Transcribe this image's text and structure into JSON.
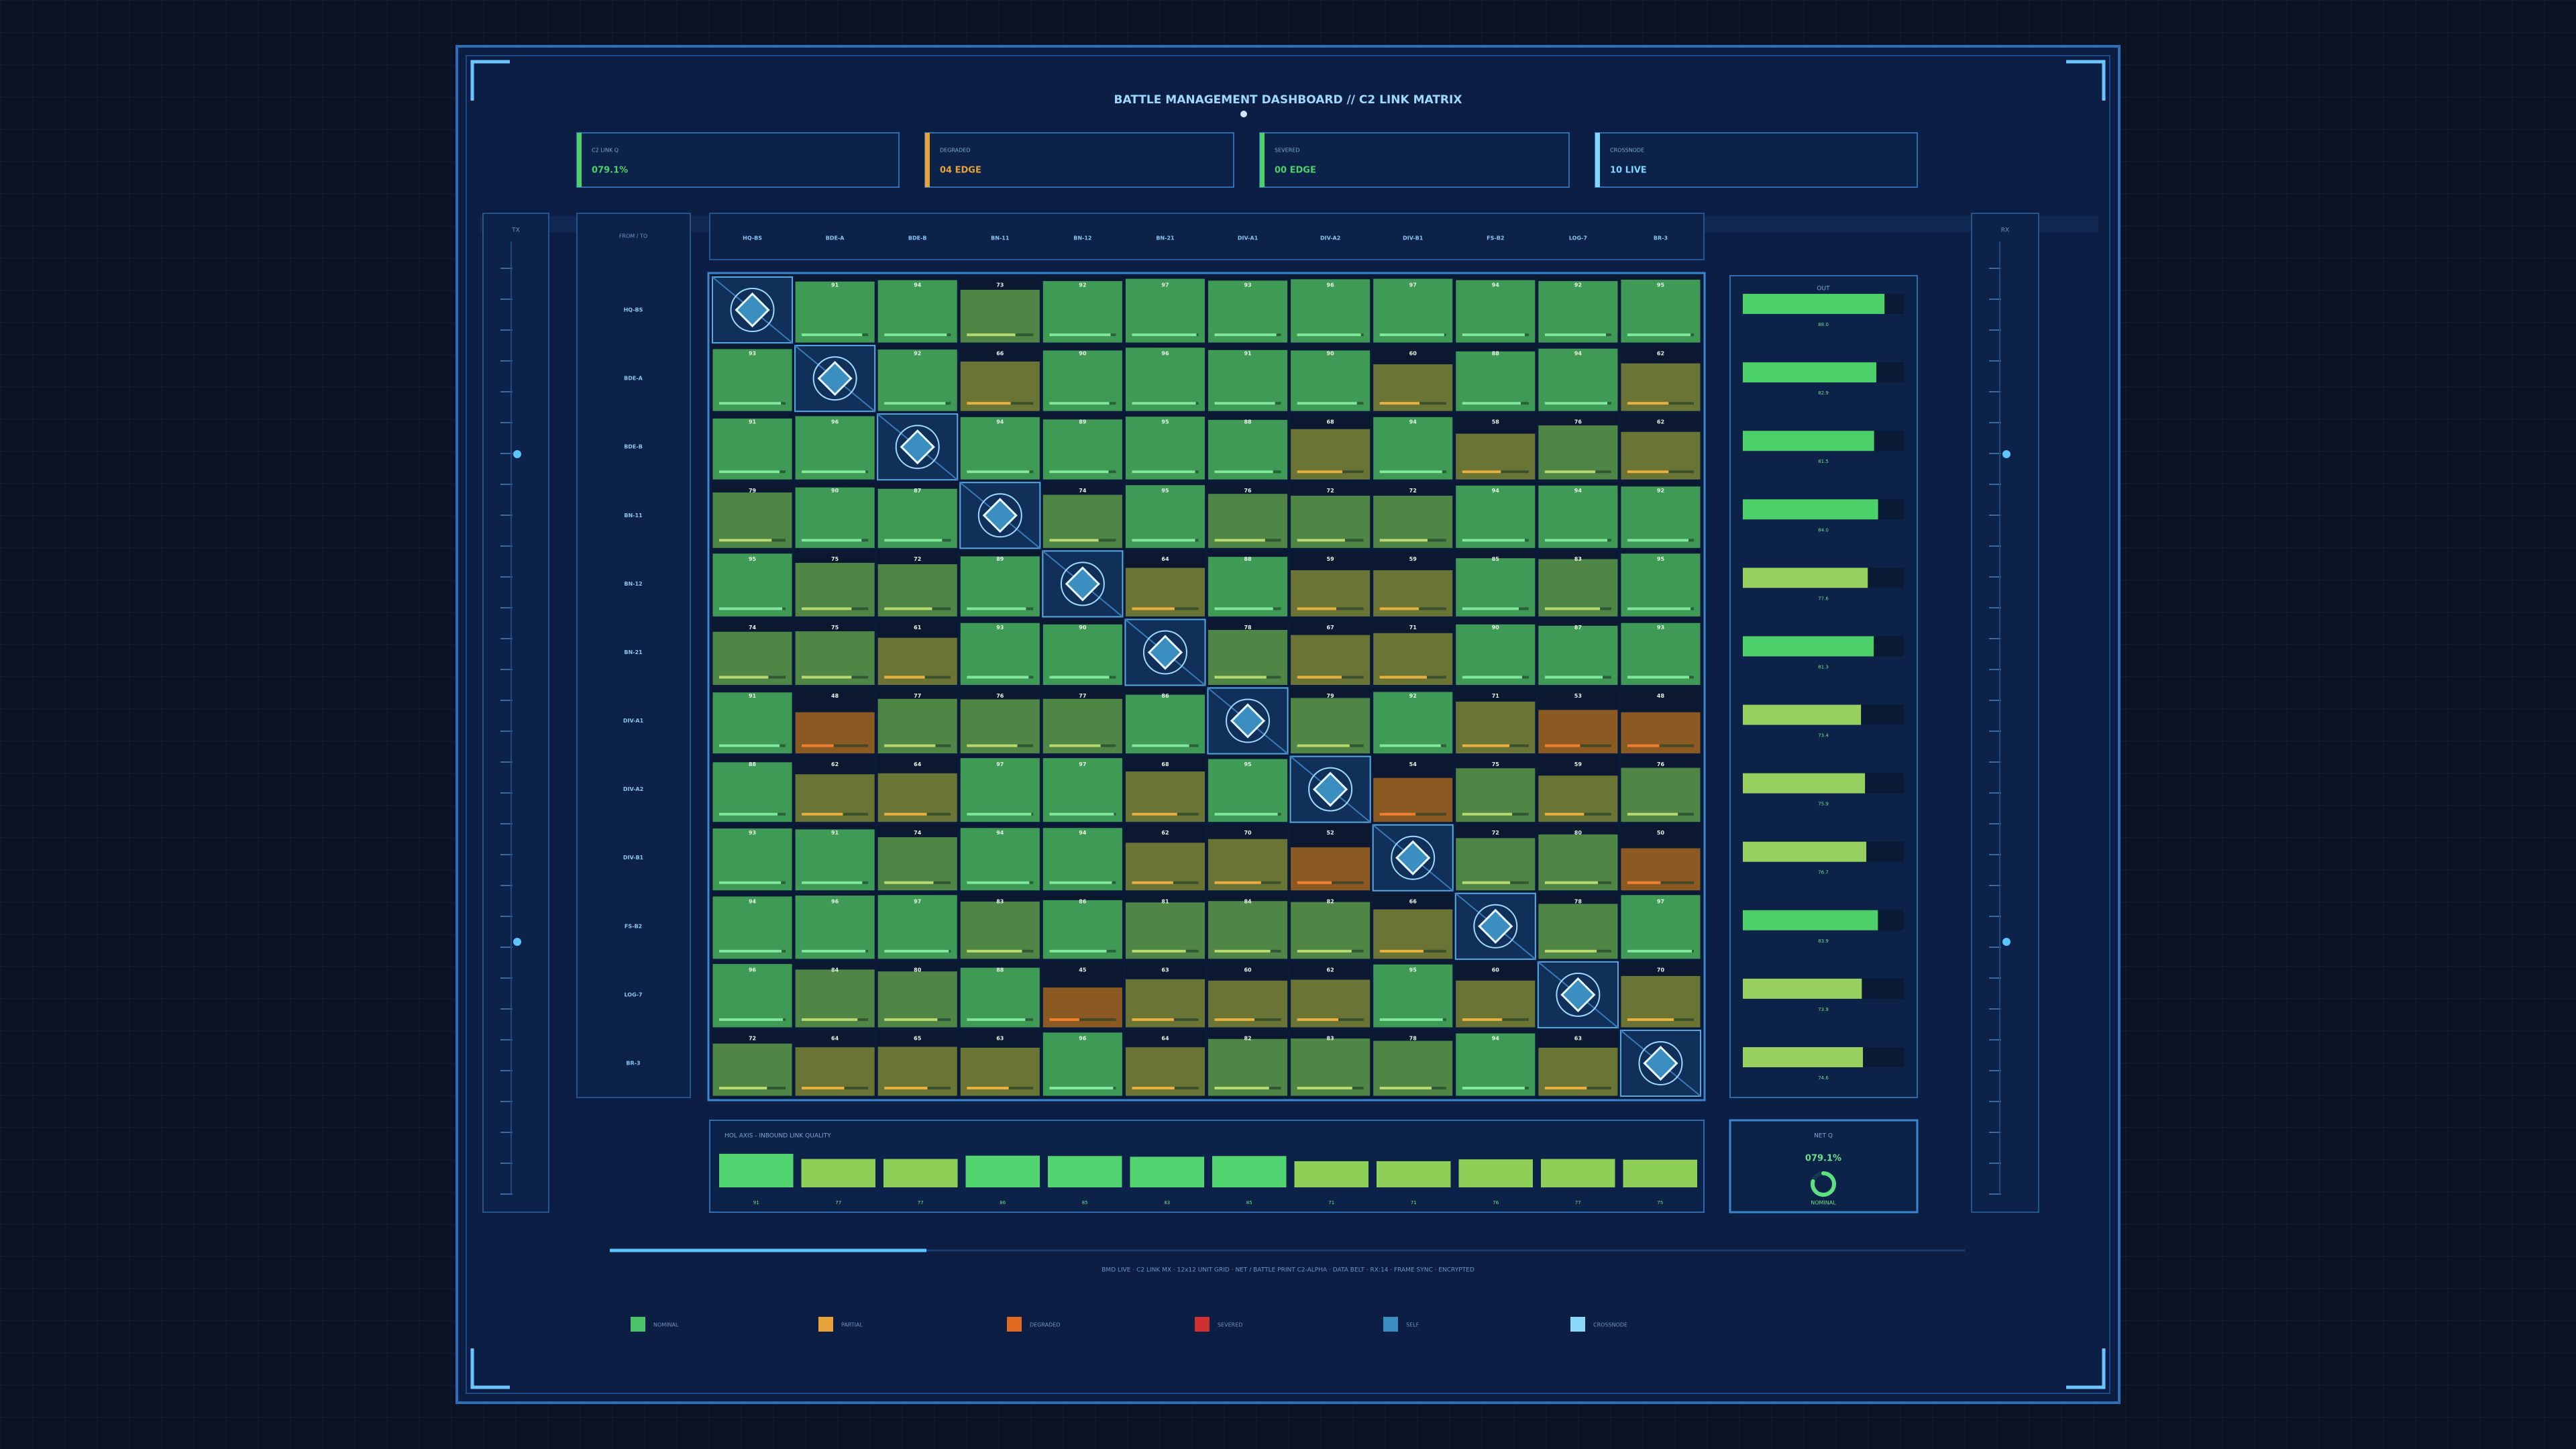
{
  "header": {
    "title": "BATTLE MANAGEMENT DASHBOARD // C2 LINK MATRIX"
  },
  "kpis": [
    {
      "label": "C2 LINK Q",
      "value": "079.1%",
      "color": "#4cd06a"
    },
    {
      "label": "DEGRADED",
      "value": "04 EDGE",
      "color": "#e8a23a"
    },
    {
      "label": "SEVERED",
      "value": "00 EDGE",
      "color": "#4cd06a"
    },
    {
      "label": "CROSSNODE",
      "value": "10 LIVE",
      "color": "#7fd6ff"
    }
  ],
  "rails": {
    "left": "TX",
    "right": "RX"
  },
  "row_panel_title": "FROM / TO",
  "nodes": [
    "HQ-BS",
    "BDE-A",
    "BDE-B",
    "BN-11",
    "BN-12",
    "BN-21",
    "DIV-A1",
    "DIV-A2",
    "DIV-B1",
    "FS-B2",
    "LOG-7",
    "BR-3"
  ],
  "matrix": [
    [
      null,
      91,
      94,
      73,
      92,
      97,
      93,
      96,
      97,
      94,
      92,
      95
    ],
    [
      93,
      null,
      92,
      66,
      90,
      96,
      91,
      90,
      60,
      88,
      94,
      62
    ],
    [
      91,
      96,
      null,
      94,
      89,
      95,
      88,
      68,
      94,
      58,
      76,
      62
    ],
    [
      79,
      90,
      87,
      null,
      74,
      95,
      76,
      72,
      72,
      94,
      94,
      92
    ],
    [
      95,
      75,
      72,
      89,
      null,
      64,
      88,
      59,
      59,
      85,
      83,
      95
    ],
    [
      74,
      75,
      61,
      93,
      90,
      null,
      78,
      67,
      71,
      90,
      87,
      93
    ],
    [
      91,
      48,
      77,
      76,
      77,
      86,
      null,
      79,
      92,
      71,
      53,
      48
    ],
    [
      88,
      62,
      64,
      97,
      97,
      68,
      95,
      null,
      54,
      75,
      59,
      76
    ],
    [
      93,
      91,
      74,
      94,
      94,
      62,
      70,
      52,
      null,
      72,
      80,
      50
    ],
    [
      94,
      96,
      97,
      83,
      86,
      81,
      84,
      82,
      66,
      null,
      78,
      97
    ],
    [
      96,
      84,
      80,
      88,
      45,
      63,
      60,
      62,
      95,
      60,
      null,
      70
    ],
    [
      72,
      64,
      65,
      63,
      96,
      64,
      82,
      83,
      78,
      94,
      63,
      null
    ]
  ],
  "outbound": {
    "title": "OUT",
    "values": [
      88.0,
      82.9,
      81.5,
      84.0,
      77.6,
      81.3,
      73.4,
      75.9,
      76.7,
      83.9,
      73.9,
      74.6
    ],
    "value_labels": [
      "88.0",
      "82.9",
      "81.5",
      "84.0",
      "77.6",
      "81.3",
      "73.4",
      "75.9",
      "76.7",
      "83.9",
      "73.9",
      "74.6"
    ]
  },
  "inbound": {
    "title": "HOL AXIS - INBOUND LINK QUALITY",
    "values": [
      91,
      77,
      77,
      86,
      85,
      83,
      85,
      71,
      71,
      76,
      77,
      75
    ]
  },
  "gauge": {
    "title": "NET Q",
    "value": 79.1,
    "value_label": "079.1%",
    "caption": "NOMINAL"
  },
  "footer": "BMD LIVE · C2 LINK MX · 12x12 UNIT GRID · NET / BATTLE PRINT C2-ALPHA · DATA BELT · RX:14 · FRAME SYNC · ENCRYPTED",
  "legend": [
    {
      "name": "NOMINAL",
      "color": "#4cc36a"
    },
    {
      "name": "PARTIAL",
      "color": "#e8a23a"
    },
    {
      "name": "DEGRADED",
      "color": "#e06a20"
    },
    {
      "name": "SEVERED",
      "color": "#d03030"
    },
    {
      "name": "SELF",
      "color": "#3a8fc0"
    },
    {
      "name": "CROSSNODE",
      "color": "#8ad8f8"
    }
  ]
}
